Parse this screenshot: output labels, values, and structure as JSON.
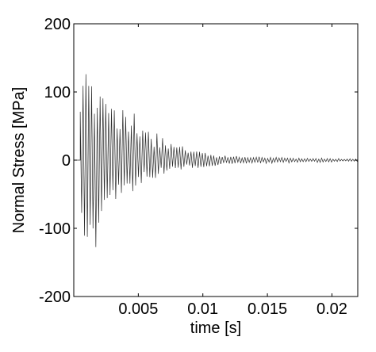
{
  "chart_data": {
    "type": "line",
    "title": "",
    "xlabel": "time [s]",
    "ylabel": "Normal Stress [MPa]",
    "xlim": [
      0,
      0.022
    ],
    "ylim": [
      -200,
      200
    ],
    "grid": false,
    "legend": "none",
    "x_ticks": [
      {
        "value": 0.005,
        "label": "0.005"
      },
      {
        "value": 0.01,
        "label": "0.01"
      },
      {
        "value": 0.015,
        "label": "0.015"
      },
      {
        "value": 0.02,
        "label": "0.02"
      }
    ],
    "y_ticks": [
      {
        "value": 200,
        "label": "200"
      },
      {
        "value": 100,
        "label": "100"
      },
      {
        "value": 0,
        "label": "0"
      },
      {
        "value": -100,
        "label": "-100"
      },
      {
        "value": -200,
        "label": "-200"
      }
    ],
    "colors": {
      "line": "#2a2a2a",
      "axes": "#000000"
    },
    "series": [
      {
        "signal_start": 0.0005,
        "oscillation_period": 0.00022,
        "envelope": {
          "x": [
            0.0005,
            0.0008,
            0.0012,
            0.002,
            0.003,
            0.004,
            0.005,
            0.006,
            0.007,
            0.008,
            0.009,
            0.01,
            0.011,
            0.012,
            0.013,
            0.014,
            0.015,
            0.016,
            0.017,
            0.018,
            0.019,
            0.02,
            0.021,
            0.022
          ],
          "upper": [
            90,
            165,
            150,
            125,
            95,
            75,
            58,
            45,
            35,
            25,
            18,
            12,
            8,
            6,
            6,
            5,
            4,
            4,
            3,
            3,
            3,
            3,
            2,
            2
          ],
          "lower": [
            -140,
            -160,
            -140,
            -100,
            -65,
            -48,
            -38,
            -30,
            -24,
            -18,
            -13,
            -10,
            -8,
            -7,
            -6,
            -5,
            -5,
            -4,
            -4,
            -3,
            -3,
            -3,
            -2,
            -2
          ]
        }
      }
    ]
  }
}
